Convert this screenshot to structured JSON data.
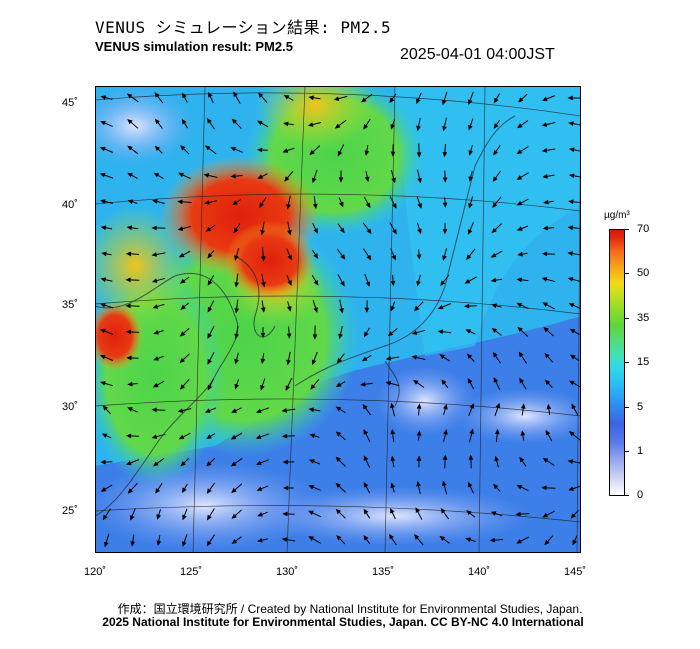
{
  "header": {
    "title_jp": "VENUS シミュレーション結果: PM2.5",
    "title_en": "VENUS simulation result: PM2.5",
    "timestamp": "2025-04-01 04:00JST"
  },
  "map": {
    "lon_labels": [
      "120˚",
      "125˚",
      "130˚",
      "135˚",
      "140˚",
      "145˚"
    ],
    "lat_labels": [
      "45˚",
      "40˚",
      "35˚",
      "30˚",
      "25˚"
    ],
    "lon_range": [
      120,
      145
    ],
    "lat_range": [
      23,
      46
    ],
    "features": [
      "PM2.5 concentration field",
      "wind vectors",
      "coastlines",
      "graticule"
    ]
  },
  "colorbar": {
    "unit": "µg/m³",
    "labels": [
      "70",
      "50",
      "35",
      "15",
      "5",
      "1",
      "0"
    ],
    "colors": {
      "high": "#d41a0a",
      "orange": "#f8a41a",
      "yellow": "#f4d818",
      "green": "#5cd63a",
      "cyan": "#2ab9f5",
      "blue": "#3a64e0",
      "low": "#ffffff"
    }
  },
  "footer": {
    "credit_line1": "作成：国立環境研究所 / Created by National Institute for Environmental Studies, Japan.",
    "credit_line2": "2025 National Institute for Environmental Studies, Japan. CC BY-NC 4.0 International"
  }
}
